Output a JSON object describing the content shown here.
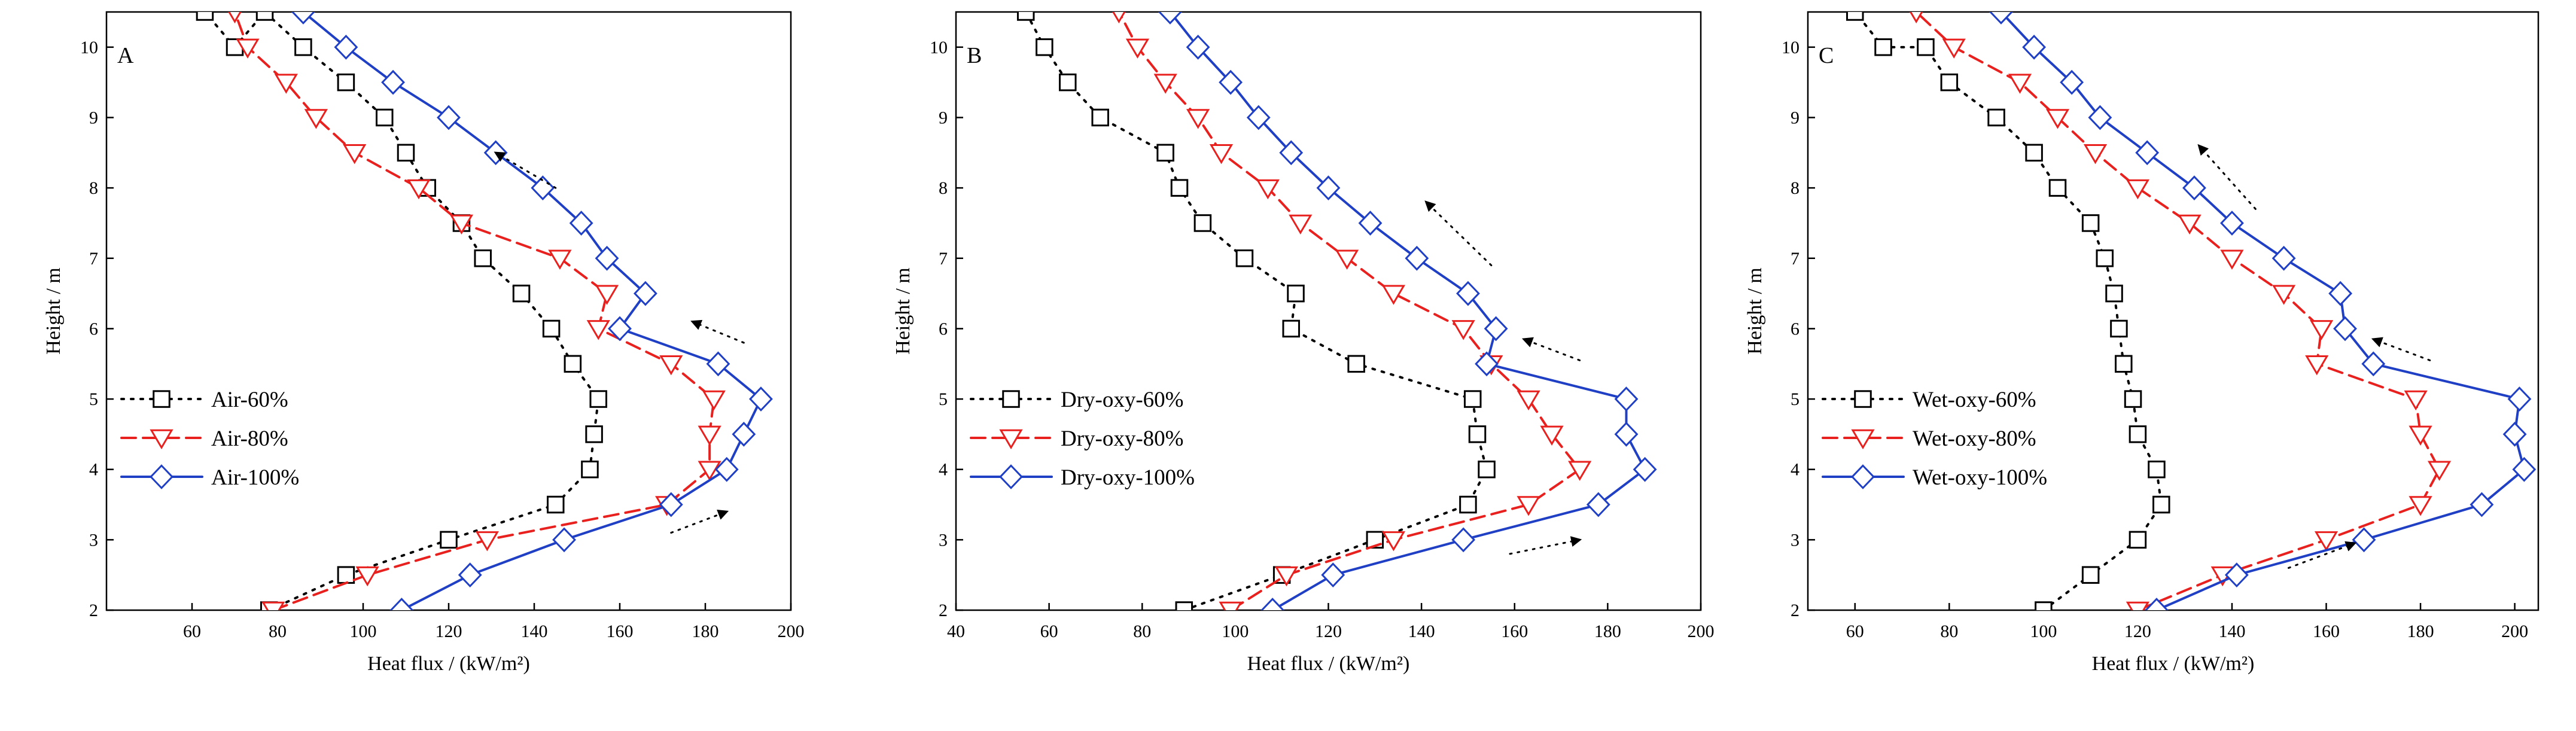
{
  "chart_data": [
    {
      "type": "line",
      "panel_label": "A",
      "xlabel": "Heat flux / (kW/m²)",
      "ylabel": "Height / m",
      "xlim": [
        40,
        200
      ],
      "ylim": [
        2,
        10.5
      ],
      "xticks": [
        "60",
        "80",
        "100",
        "120",
        "140",
        "160",
        "180",
        "200"
      ],
      "yticks": [
        "2",
        "3",
        "4",
        "5",
        "6",
        "7",
        "8",
        "9",
        "10"
      ],
      "legend_position": "center-left",
      "series": [
        {
          "name": "Air-60%",
          "color": "#000000",
          "marker": "square",
          "line": "dotted",
          "x": [
            78,
            96,
            120,
            145,
            153,
            154,
            155,
            149,
            144,
            137,
            128,
            123,
            115,
            110,
            105,
            96,
            86,
            77,
            70,
            63
          ],
          "y": [
            2,
            2.5,
            3,
            3.5,
            4,
            4.5,
            5,
            5.5,
            6,
            6.5,
            7,
            7.5,
            8,
            8.5,
            9,
            9.5,
            10,
            10.5,
            10,
            10.5
          ]
        },
        {
          "name": "Air-80%",
          "color": "#e8201e",
          "marker": "triangle-down",
          "line": "dashed",
          "x": [
            79,
            101,
            129,
            171,
            181,
            181,
            182,
            172,
            155,
            157,
            146,
            123,
            113,
            98,
            89,
            82,
            73,
            70
          ],
          "y": [
            2,
            2.5,
            3,
            3.5,
            4,
            4.5,
            5,
            5.5,
            6,
            6.5,
            7,
            7.5,
            8,
            8.5,
            9,
            9.5,
            10,
            10.5
          ]
        },
        {
          "name": "Air-100%",
          "color": "#1f3fc4",
          "marker": "diamond",
          "line": "solid",
          "x": [
            109,
            125,
            147,
            172,
            185,
            189,
            193,
            183,
            160,
            166,
            157,
            151,
            142,
            131,
            120,
            107,
            96,
            86
          ],
          "y": [
            2,
            2.5,
            3,
            3.5,
            4,
            4.5,
            5,
            5.5,
            6,
            6.5,
            7,
            7.5,
            8,
            8.5,
            9,
            9.5,
            10,
            10.5
          ]
        }
      ],
      "arrows": [
        {
          "from": [
            145,
            8.0
          ],
          "to": [
            131,
            8.5
          ]
        },
        {
          "from": [
            189,
            5.8
          ],
          "to": [
            177,
            6.1
          ]
        },
        {
          "from": [
            172,
            3.1
          ],
          "to": [
            185,
            3.4
          ]
        }
      ]
    },
    {
      "type": "line",
      "panel_label": "B",
      "xlabel": "Heat flux / (kW/m²)",
      "ylabel": "Height / m",
      "xlim": [
        40,
        200
      ],
      "ylim": [
        2,
        10.5
      ],
      "xticks": [
        "40",
        "60",
        "80",
        "100",
        "120",
        "140",
        "160",
        "180",
        "200"
      ],
      "yticks": [
        "2",
        "3",
        "4",
        "5",
        "6",
        "7",
        "8",
        "9",
        "10"
      ],
      "legend_position": "center-left",
      "series": [
        {
          "name": "Dry-oxy-60%",
          "color": "#000000",
          "marker": "square",
          "line": "dotted",
          "x": [
            89,
            110,
            130,
            150,
            154,
            152,
            151,
            126,
            112,
            113,
            102,
            93,
            88,
            85,
            71,
            64,
            59,
            55
          ],
          "y": [
            2,
            2.5,
            3,
            3.5,
            4,
            4.5,
            5,
            5.5,
            6,
            6.5,
            7,
            7.5,
            8,
            8.5,
            9,
            9.5,
            10,
            10.5
          ]
        },
        {
          "name": "Dry-oxy-80%",
          "color": "#e8201e",
          "marker": "triangle-down",
          "line": "dashed",
          "x": [
            99,
            111,
            134,
            163,
            174,
            168,
            163,
            155,
            149,
            134,
            124,
            114,
            107,
            97,
            92,
            85,
            79,
            75
          ],
          "y": [
            2,
            2.5,
            3,
            3.5,
            4,
            4.5,
            5,
            5.5,
            6,
            6.5,
            7,
            7.5,
            8,
            8.5,
            9,
            9.5,
            10,
            10.5
          ]
        },
        {
          "name": "Dry-oxy-100%",
          "color": "#1f3fc4",
          "marker": "diamond",
          "line": "solid",
          "x": [
            108,
            121,
            149,
            178,
            188,
            184,
            184,
            154,
            156,
            150,
            139,
            129,
            120,
            112,
            105,
            99,
            92,
            86
          ],
          "y": [
            2,
            2.5,
            3,
            3.5,
            4,
            4.5,
            5,
            5.5,
            6,
            6.5,
            7,
            7.5,
            8,
            8.5,
            9,
            9.5,
            10,
            10.5
          ]
        }
      ],
      "arrows": [
        {
          "from": [
            155,
            6.9
          ],
          "to": [
            141,
            7.8
          ]
        },
        {
          "from": [
            174,
            5.55
          ],
          "to": [
            162,
            5.85
          ]
        },
        {
          "from": [
            159,
            2.8
          ],
          "to": [
            174,
            3.0
          ]
        }
      ]
    },
    {
      "type": "line",
      "panel_label": "C",
      "xlabel": "Heat flux / (kW/m²)",
      "ylabel": "Height / m",
      "xlim": [
        50,
        205
      ],
      "ylim": [
        2,
        10.5
      ],
      "xticks": [
        "60",
        "80",
        "100",
        "120",
        "140",
        "160",
        "180",
        "200"
      ],
      "yticks": [
        "2",
        "3",
        "4",
        "5",
        "6",
        "7",
        "8",
        "9",
        "10"
      ],
      "legend_position": "center-left",
      "series": [
        {
          "name": "Wet-oxy-60%",
          "color": "#000000",
          "marker": "square",
          "line": "dotted",
          "x": [
            100,
            110,
            120,
            125,
            124,
            120,
            119,
            117,
            116,
            115,
            113,
            110,
            103,
            98,
            90,
            80,
            75,
            66,
            60
          ],
          "y": [
            2,
            2.5,
            3,
            3.5,
            4,
            4.5,
            5,
            5.5,
            6,
            6.5,
            7,
            7.5,
            8,
            8.5,
            9,
            9.5,
            10,
            10,
            10.5
          ]
        },
        {
          "name": "Wet-oxy-80%",
          "color": "#e8201e",
          "marker": "triangle-down",
          "line": "dashed",
          "x": [
            120,
            138,
            160,
            180,
            184,
            180,
            179,
            158,
            159,
            151,
            140,
            131,
            120,
            111,
            103,
            95,
            81,
            73
          ],
          "y": [
            2,
            2.5,
            3,
            3.5,
            4,
            4.5,
            5,
            5.5,
            6,
            6.5,
            7,
            7.5,
            8,
            8.5,
            9,
            9.5,
            10,
            10.5
          ]
        },
        {
          "name": "Wet-oxy-100%",
          "color": "#1f3fc4",
          "marker": "diamond",
          "line": "solid",
          "x": [
            124,
            141,
            168,
            193,
            202,
            200,
            201,
            170,
            164,
            163,
            151,
            140,
            132,
            122,
            112,
            106,
            98,
            91
          ],
          "y": [
            2,
            2.5,
            3,
            3.5,
            4,
            4.5,
            5,
            5.5,
            6,
            6.5,
            7,
            7.5,
            8,
            8.5,
            9,
            9.5,
            10,
            10.5
          ]
        }
      ],
      "arrows": [
        {
          "from": [
            145,
            7.7
          ],
          "to": [
            133,
            8.6
          ]
        },
        {
          "from": [
            182,
            5.55
          ],
          "to": [
            170,
            5.85
          ]
        },
        {
          "from": [
            152,
            2.6
          ],
          "to": [
            166,
            2.95
          ]
        }
      ]
    }
  ]
}
